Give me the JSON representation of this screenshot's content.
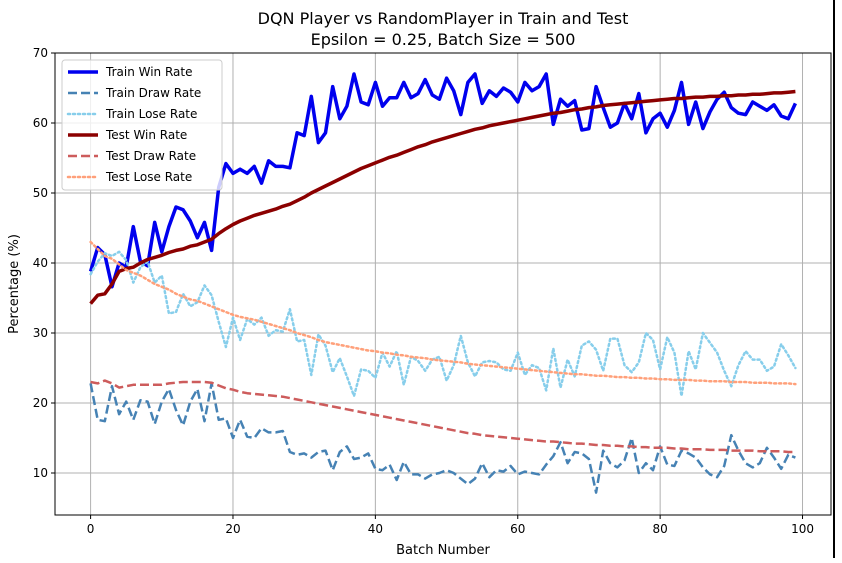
{
  "chart_data": {
    "type": "line",
    "title": "DQN Player vs RandomPlayer in Train and Test",
    "subtitle": "Epsilon = 0.25, Batch Size = 500",
    "xlabel": "Batch Number",
    "ylabel": "Percentage (%)",
    "xlim": [
      -5,
      104
    ],
    "ylim": [
      4,
      70
    ],
    "xticks": [
      0,
      20,
      40,
      60,
      80,
      100
    ],
    "yticks": [
      10,
      20,
      30,
      40,
      50,
      60,
      70
    ],
    "grid": true,
    "legend_position": "top-left",
    "x": [
      0,
      1,
      2,
      3,
      4,
      5,
      6,
      7,
      8,
      9,
      10,
      11,
      12,
      13,
      14,
      15,
      16,
      17,
      18,
      19,
      20,
      21,
      22,
      23,
      24,
      25,
      26,
      27,
      28,
      29,
      30,
      31,
      32,
      33,
      34,
      35,
      36,
      37,
      38,
      39,
      40,
      41,
      42,
      43,
      44,
      45,
      46,
      47,
      48,
      49,
      50,
      51,
      52,
      53,
      54,
      55,
      56,
      57,
      58,
      59,
      60,
      61,
      62,
      63,
      64,
      65,
      66,
      67,
      68,
      69,
      70,
      71,
      72,
      73,
      74,
      75,
      76,
      77,
      78,
      79,
      80,
      81,
      82,
      83,
      84,
      85,
      86,
      87,
      88,
      89,
      90,
      91,
      92,
      93,
      94,
      95,
      96,
      97,
      98,
      99
    ],
    "series": [
      {
        "name": "Train Win Rate",
        "color": "#0000ee",
        "style": "solid",
        "width": 3.5,
        "values": [
          38.8,
          42.2,
          41.2,
          36.6,
          40.0,
          39.4,
          45.2,
          40.2,
          39.6,
          45.8,
          41.6,
          45.2,
          48.0,
          47.6,
          46.0,
          43.6,
          45.8,
          41.8,
          50.8,
          54.2,
          52.8,
          53.4,
          52.8,
          53.8,
          51.4,
          54.6,
          53.8,
          53.8,
          53.6,
          58.6,
          58.2,
          63.8,
          57.2,
          58.6,
          65.2,
          60.6,
          62.4,
          67.0,
          63.0,
          62.6,
          65.8,
          62.4,
          63.6,
          63.6,
          65.8,
          63.6,
          64.2,
          66.2,
          64.0,
          63.4,
          66.4,
          64.6,
          61.2,
          65.8,
          67.0,
          62.8,
          64.6,
          63.8,
          65.0,
          64.4,
          63.0,
          65.8,
          64.6,
          65.2,
          67.0,
          59.8,
          63.4,
          62.4,
          63.2,
          59.0,
          59.2,
          65.2,
          62.2,
          59.4,
          60.0,
          62.8,
          60.6,
          64.2,
          58.6,
          60.6,
          61.4,
          59.4,
          61.8,
          65.8,
          59.8,
          63.0,
          59.2,
          61.6,
          63.4,
          64.4,
          62.2,
          61.4,
          61.2,
          63.0,
          62.4,
          61.8,
          62.6,
          61.0,
          60.6,
          62.8
        ]
      },
      {
        "name": "Train Draw Rate",
        "color": "#4682b4",
        "style": "dashed",
        "width": 2.5,
        "values": [
          22.8,
          17.6,
          17.4,
          22.4,
          18.4,
          20.2,
          17.6,
          20.4,
          20.2,
          17.0,
          20.2,
          22.0,
          19.0,
          16.8,
          20.2,
          22.0,
          17.4,
          22.8,
          17.6,
          17.8,
          15.0,
          17.6,
          15.2,
          15.0,
          16.4,
          15.8,
          15.8,
          16.0,
          13.0,
          12.6,
          12.8,
          12.2,
          13.0,
          13.2,
          10.4,
          13.0,
          13.8,
          12.0,
          12.2,
          12.8,
          10.6,
          10.4,
          11.2,
          9.0,
          11.6,
          9.8,
          9.8,
          9.2,
          9.8,
          10.0,
          10.4,
          10.0,
          9.2,
          8.4,
          9.2,
          11.4,
          9.4,
          10.4,
          10.2,
          11.0,
          9.8,
          10.2,
          10.0,
          9.8,
          11.2,
          12.4,
          14.4,
          11.4,
          13.0,
          12.8,
          12.0,
          7.2,
          13.2,
          11.4,
          10.8,
          11.8,
          15.0,
          10.0,
          11.4,
          10.4,
          13.8,
          11.2,
          11.0,
          13.2,
          12.8,
          12.2,
          10.8,
          9.8,
          9.4,
          11.0,
          15.4,
          13.2,
          11.4,
          10.8,
          11.4,
          13.6,
          12.2,
          10.6,
          12.6,
          12.2
        ]
      },
      {
        "name": "Train Lose Rate",
        "color": "#87ceeb",
        "style": "dotted",
        "width": 2.5,
        "values": [
          38.4,
          40.2,
          41.4,
          41.0,
          41.6,
          40.4,
          37.2,
          39.4,
          40.2,
          37.2,
          38.2,
          32.8,
          33.0,
          35.6,
          33.8,
          34.4,
          36.8,
          35.4,
          31.6,
          28.0,
          32.2,
          29.0,
          32.0,
          31.2,
          32.2,
          29.6,
          30.4,
          30.2,
          33.4,
          28.8,
          29.0,
          24.0,
          29.8,
          28.2,
          24.4,
          26.4,
          23.8,
          21.0,
          24.8,
          24.6,
          23.6,
          27.2,
          25.2,
          27.4,
          22.6,
          26.6,
          26.0,
          24.6,
          26.2,
          26.6,
          23.2,
          25.4,
          29.6,
          25.8,
          23.8,
          25.8,
          26.0,
          25.8,
          24.8,
          24.6,
          27.2,
          24.0,
          25.4,
          25.0,
          21.8,
          27.8,
          22.2,
          26.2,
          23.8,
          28.2,
          28.8,
          27.6,
          24.6,
          29.2,
          29.2,
          25.4,
          24.4,
          25.8,
          30.0,
          29.0,
          24.8,
          29.4,
          27.2,
          21.0,
          27.4,
          24.8,
          30.0,
          28.6,
          27.2,
          24.6,
          22.4,
          25.4,
          27.4,
          26.2,
          26.2,
          24.6,
          25.2,
          28.4,
          26.8,
          25.0
        ]
      },
      {
        "name": "Test Win Rate",
        "color": "#8b0000",
        "style": "solid",
        "width": 3.5,
        "values": [
          34.2,
          35.4,
          35.6,
          37.0,
          38.8,
          39.2,
          39.4,
          40.0,
          40.5,
          40.8,
          41.1,
          41.5,
          41.8,
          42.0,
          42.4,
          42.6,
          43.0,
          43.4,
          44.2,
          44.9,
          45.5,
          46.0,
          46.4,
          46.8,
          47.1,
          47.4,
          47.7,
          48.1,
          48.4,
          48.9,
          49.4,
          50.0,
          50.5,
          51.0,
          51.5,
          52.0,
          52.5,
          53.0,
          53.5,
          53.9,
          54.3,
          54.7,
          55.1,
          55.4,
          55.8,
          56.2,
          56.6,
          56.9,
          57.3,
          57.6,
          57.9,
          58.2,
          58.5,
          58.8,
          59.1,
          59.3,
          59.6,
          59.8,
          60.0,
          60.2,
          60.4,
          60.6,
          60.8,
          61.0,
          61.2,
          61.4,
          61.5,
          61.7,
          61.9,
          62.0,
          62.2,
          62.3,
          62.5,
          62.6,
          62.7,
          62.8,
          62.9,
          63.0,
          63.1,
          63.2,
          63.3,
          63.4,
          63.5,
          63.5,
          63.6,
          63.7,
          63.7,
          63.8,
          63.8,
          63.9,
          63.9,
          64.0,
          64.0,
          64.1,
          64.1,
          64.2,
          64.3,
          64.3,
          64.4,
          64.5
        ]
      },
      {
        "name": "Test Draw Rate",
        "color": "#cd5c5c",
        "style": "dashed",
        "width": 2.5,
        "values": [
          23.0,
          22.8,
          23.2,
          22.8,
          22.2,
          22.4,
          22.6,
          22.6,
          22.6,
          22.6,
          22.6,
          22.8,
          22.9,
          23.0,
          23.0,
          23.0,
          23.0,
          22.9,
          22.5,
          22.1,
          21.9,
          21.6,
          21.4,
          21.3,
          21.2,
          21.1,
          21.0,
          20.9,
          20.7,
          20.5,
          20.3,
          20.1,
          19.9,
          19.7,
          19.5,
          19.3,
          19.1,
          18.9,
          18.7,
          18.5,
          18.3,
          18.1,
          17.9,
          17.7,
          17.5,
          17.3,
          17.1,
          16.9,
          16.7,
          16.5,
          16.3,
          16.1,
          15.9,
          15.7,
          15.6,
          15.4,
          15.3,
          15.2,
          15.1,
          15.0,
          14.9,
          14.8,
          14.7,
          14.6,
          14.5,
          14.5,
          14.4,
          14.3,
          14.2,
          14.2,
          14.1,
          14.0,
          14.0,
          13.9,
          13.9,
          13.8,
          13.8,
          13.7,
          13.7,
          13.6,
          13.6,
          13.6,
          13.5,
          13.5,
          13.4,
          13.4,
          13.4,
          13.3,
          13.3,
          13.3,
          13.2,
          13.2,
          13.2,
          13.2,
          13.1,
          13.1,
          13.1,
          13.1,
          13.0,
          13.0
        ]
      },
      {
        "name": "Test Lose Rate",
        "color": "#ffa07a",
        "style": "dotted",
        "width": 2.5,
        "values": [
          43.0,
          42.0,
          41.0,
          40.6,
          39.8,
          39.0,
          38.6,
          38.2,
          37.6,
          37.0,
          36.6,
          36.2,
          35.6,
          35.2,
          34.8,
          34.6,
          34.2,
          33.8,
          33.4,
          33.0,
          32.6,
          32.3,
          32.1,
          31.9,
          31.6,
          31.3,
          31.0,
          30.7,
          30.4,
          30.0,
          29.7,
          29.4,
          29.0,
          28.7,
          28.5,
          28.3,
          28.1,
          27.9,
          27.7,
          27.5,
          27.4,
          27.2,
          27.1,
          26.9,
          26.8,
          26.6,
          26.5,
          26.4,
          26.2,
          26.1,
          26.0,
          25.9,
          25.8,
          25.6,
          25.5,
          25.4,
          25.3,
          25.2,
          25.1,
          25.0,
          24.9,
          24.8,
          24.7,
          24.6,
          24.5,
          24.4,
          24.3,
          24.2,
          24.1,
          24.1,
          24.0,
          23.9,
          23.9,
          23.8,
          23.7,
          23.7,
          23.6,
          23.6,
          23.5,
          23.5,
          23.4,
          23.4,
          23.3,
          23.3,
          23.3,
          23.2,
          23.2,
          23.1,
          23.1,
          23.1,
          23.0,
          23.0,
          23.0,
          22.9,
          22.9,
          22.9,
          22.8,
          22.8,
          22.8,
          22.7
        ]
      }
    ]
  }
}
